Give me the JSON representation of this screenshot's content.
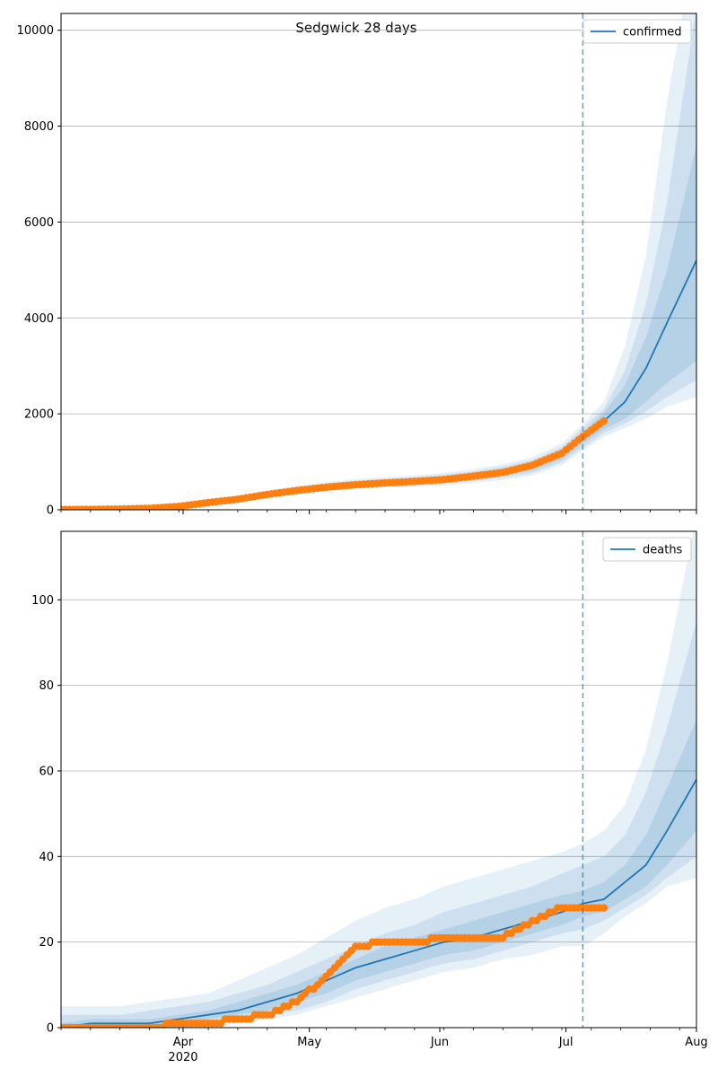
{
  "figure": {
    "title": "Sedgwick 28 days"
  },
  "colors": {
    "model": "#1f77b4",
    "band": "#1f77b4",
    "observed": "#ff7f0e",
    "grid": "#b0b0b0"
  },
  "x_axis": {
    "start": "2020-03-03",
    "end": "2020-08-01",
    "major_ticks": [
      {
        "date": "2020-04-01",
        "label": "Apr",
        "sublabel": "2020"
      },
      {
        "date": "2020-05-01",
        "label": "May",
        "sublabel": ""
      },
      {
        "date": "2020-06-01",
        "label": "Jun",
        "sublabel": ""
      },
      {
        "date": "2020-07-01",
        "label": "Jul",
        "sublabel": ""
      },
      {
        "date": "2020-08-01",
        "label": "Aug",
        "sublabel": ""
      }
    ]
  },
  "chart_data": [
    {
      "type": "line",
      "legend": {
        "label": "confirmed",
        "position": "upper-right"
      },
      "ylim": [
        0,
        10350
      ],
      "y_ticks": [
        0,
        2000,
        4000,
        6000,
        8000,
        10000
      ],
      "y_tick_labels": [
        "0",
        "2000",
        "4000",
        "6000",
        "8000",
        "10000"
      ],
      "grid": "horizontal",
      "forecast_start": "2020-07-05",
      "observed_end": "2020-07-10",
      "model": {
        "dates": [
          "2020-03-03",
          "2020-03-10",
          "2020-03-17",
          "2020-03-24",
          "2020-03-31",
          "2020-04-07",
          "2020-04-14",
          "2020-04-21",
          "2020-04-28",
          "2020-05-05",
          "2020-05-12",
          "2020-05-19",
          "2020-05-26",
          "2020-06-02",
          "2020-06-09",
          "2020-06-16",
          "2020-06-23",
          "2020-06-30",
          "2020-07-05",
          "2020-07-10",
          "2020-07-15",
          "2020-07-20",
          "2020-07-25",
          "2020-08-01"
        ],
        "median": [
          5,
          8,
          15,
          30,
          70,
          150,
          230,
          330,
          420,
          490,
          540,
          570,
          600,
          640,
          700,
          780,
          900,
          1150,
          1500,
          1850,
          2250,
          2950,
          3900,
          5200
        ],
        "band_50": [
          [
            5,
            5
          ],
          [
            8,
            8
          ],
          [
            15,
            15
          ],
          [
            30,
            30
          ],
          [
            65,
            75
          ],
          [
            140,
            160
          ],
          [
            215,
            245
          ],
          [
            310,
            350
          ],
          [
            395,
            445
          ],
          [
            460,
            520
          ],
          [
            505,
            575
          ],
          [
            535,
            605
          ],
          [
            560,
            640
          ],
          [
            595,
            685
          ],
          [
            645,
            755
          ],
          [
            715,
            845
          ],
          [
            820,
            980
          ],
          [
            1050,
            1250
          ],
          [
            1380,
            1620
          ],
          [
            1680,
            2020
          ],
          [
            1900,
            2600
          ],
          [
            2250,
            3600
          ],
          [
            2650,
            5000
          ],
          [
            3100,
            7600
          ]
        ],
        "band_80": [
          [
            5,
            5
          ],
          [
            8,
            8
          ],
          [
            15,
            15
          ],
          [
            30,
            30
          ],
          [
            55,
            85
          ],
          [
            125,
            175
          ],
          [
            195,
            265
          ],
          [
            290,
            370
          ],
          [
            370,
            470
          ],
          [
            430,
            550
          ],
          [
            470,
            610
          ],
          [
            500,
            640
          ],
          [
            520,
            680
          ],
          [
            550,
            730
          ],
          [
            600,
            800
          ],
          [
            670,
            900
          ],
          [
            770,
            1040
          ],
          [
            990,
            1310
          ],
          [
            1300,
            1700
          ],
          [
            1600,
            2100
          ],
          [
            1800,
            2900
          ],
          [
            2050,
            4300
          ],
          [
            2350,
            6400
          ],
          [
            2700,
            10500
          ]
        ],
        "band_95": [
          [
            3,
            8
          ],
          [
            6,
            11
          ],
          [
            12,
            18
          ],
          [
            25,
            35
          ],
          [
            45,
            95
          ],
          [
            110,
            190
          ],
          [
            175,
            285
          ],
          [
            265,
            395
          ],
          [
            345,
            495
          ],
          [
            400,
            580
          ],
          [
            440,
            640
          ],
          [
            465,
            675
          ],
          [
            485,
            715
          ],
          [
            510,
            770
          ],
          [
            555,
            845
          ],
          [
            620,
            950
          ],
          [
            715,
            1100
          ],
          [
            930,
            1380
          ],
          [
            1230,
            1800
          ],
          [
            1520,
            2250
          ],
          [
            1700,
            3400
          ],
          [
            1900,
            5300
          ],
          [
            2150,
            8500
          ],
          [
            2350,
            12000
          ]
        ]
      },
      "observed": {
        "dates": [
          "2020-03-03",
          "2020-03-10",
          "2020-03-17",
          "2020-03-24",
          "2020-03-31",
          "2020-04-07",
          "2020-04-14",
          "2020-04-21",
          "2020-04-28",
          "2020-05-05",
          "2020-05-12",
          "2020-05-19",
          "2020-05-26",
          "2020-06-02",
          "2020-06-09",
          "2020-06-16",
          "2020-06-23",
          "2020-06-30",
          "2020-07-05",
          "2020-07-10"
        ],
        "values": [
          5,
          8,
          15,
          30,
          70,
          150,
          220,
          320,
          400,
          470,
          520,
          560,
          590,
          630,
          700,
          780,
          930,
          1180,
          1530,
          1850
        ]
      }
    },
    {
      "type": "line",
      "legend": {
        "label": "deaths",
        "position": "upper-right"
      },
      "ylim": [
        0,
        116
      ],
      "y_ticks": [
        0,
        20,
        40,
        60,
        80,
        100
      ],
      "y_tick_labels": [
        "0",
        "20",
        "40",
        "60",
        "80",
        "100"
      ],
      "grid": "horizontal",
      "forecast_start": "2020-07-05",
      "observed_end": "2020-07-10",
      "model": {
        "dates": [
          "2020-03-03",
          "2020-03-10",
          "2020-03-17",
          "2020-03-24",
          "2020-03-31",
          "2020-04-07",
          "2020-04-14",
          "2020-04-21",
          "2020-04-28",
          "2020-05-05",
          "2020-05-12",
          "2020-05-19",
          "2020-05-26",
          "2020-06-02",
          "2020-06-09",
          "2020-06-16",
          "2020-06-23",
          "2020-06-30",
          "2020-07-05",
          "2020-07-10",
          "2020-07-15",
          "2020-07-20",
          "2020-07-25",
          "2020-08-01"
        ],
        "median": [
          0,
          1,
          1,
          1,
          2,
          3,
          4,
          6,
          8,
          11,
          14,
          16,
          18,
          20,
          21,
          23,
          25,
          27,
          29,
          30,
          34,
          38,
          46,
          58
        ],
        "band_50": [
          [
            0,
            1
          ],
          [
            0,
            2
          ],
          [
            0,
            2
          ],
          [
            0,
            2
          ],
          [
            1,
            3
          ],
          [
            2,
            4
          ],
          [
            3,
            6
          ],
          [
            4,
            8
          ],
          [
            6,
            10
          ],
          [
            8,
            13
          ],
          [
            11,
            16
          ],
          [
            13,
            19
          ],
          [
            15,
            21
          ],
          [
            17,
            23
          ],
          [
            18,
            25
          ],
          [
            20,
            27
          ],
          [
            22,
            29
          ],
          [
            24,
            31
          ],
          [
            26,
            32
          ],
          [
            27,
            34
          ],
          [
            30,
            38
          ],
          [
            33,
            45
          ],
          [
            38,
            56
          ],
          [
            46,
            72
          ]
        ],
        "band_80": [
          [
            0,
            3
          ],
          [
            0,
            3
          ],
          [
            0,
            3
          ],
          [
            0,
            4
          ],
          [
            0,
            5
          ],
          [
            1,
            6
          ],
          [
            2,
            8
          ],
          [
            3,
            10
          ],
          [
            4,
            13
          ],
          [
            6,
            16
          ],
          [
            9,
            19
          ],
          [
            11,
            22
          ],
          [
            13,
            24
          ],
          [
            15,
            27
          ],
          [
            16,
            29
          ],
          [
            18,
            31
          ],
          [
            20,
            33
          ],
          [
            22,
            36
          ],
          [
            23,
            38
          ],
          [
            25,
            40
          ],
          [
            28,
            45
          ],
          [
            31,
            55
          ],
          [
            35,
            70
          ],
          [
            40,
            95
          ]
        ],
        "band_95": [
          [
            0,
            5
          ],
          [
            0,
            5
          ],
          [
            0,
            5
          ],
          [
            0,
            6
          ],
          [
            0,
            7
          ],
          [
            0,
            8
          ],
          [
            1,
            11
          ],
          [
            2,
            14
          ],
          [
            3,
            17
          ],
          [
            5,
            21
          ],
          [
            7,
            25
          ],
          [
            9,
            28
          ],
          [
            11,
            30
          ],
          [
            13,
            33
          ],
          [
            14,
            35
          ],
          [
            16,
            37
          ],
          [
            17,
            39
          ],
          [
            19,
            41
          ],
          [
            19,
            43
          ],
          [
            22,
            46
          ],
          [
            26,
            52
          ],
          [
            29,
            65
          ],
          [
            33,
            85
          ],
          [
            35,
            120
          ]
        ]
      },
      "observed": {
        "dates": [
          "2020-03-03",
          "2020-03-10",
          "2020-03-17",
          "2020-03-24",
          "2020-03-31",
          "2020-04-07",
          "2020-04-14",
          "2020-04-21",
          "2020-04-28",
          "2020-05-05",
          "2020-05-12",
          "2020-05-19",
          "2020-05-26",
          "2020-06-02",
          "2020-06-09",
          "2020-06-16",
          "2020-06-23",
          "2020-06-30",
          "2020-07-05",
          "2020-07-10"
        ],
        "values": [
          0,
          0,
          0,
          0,
          1,
          1,
          2,
          3,
          6,
          12,
          19,
          20,
          20,
          21,
          21,
          21,
          25,
          28,
          28,
          28
        ]
      }
    }
  ]
}
